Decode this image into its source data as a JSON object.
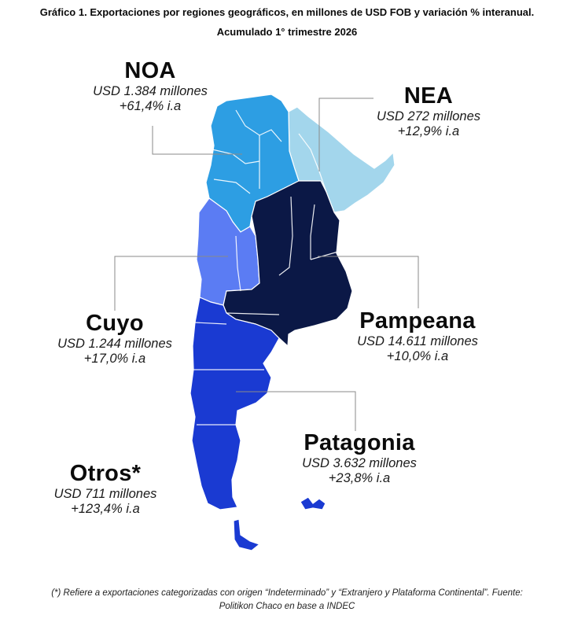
{
  "title": {
    "line1": "Gráfico 1. Exportaciones por regiones geográficos, en millones de USD FOB y variación % interanual.",
    "line2": "Acumulado 1° trimestre 2026"
  },
  "colors": {
    "noa": "#2d9ee3",
    "nea": "#a3d6ec",
    "cuyo": "#5b7cf3",
    "pampeana": "#0b1846",
    "patagonia": "#1a3ad2",
    "connector": "#8a8a8a"
  },
  "regions": {
    "noa": {
      "name": "NOA",
      "value": "USD 1.384 millones",
      "change": "+61,4% i.a"
    },
    "nea": {
      "name": "NEA",
      "value": "USD 272 millones",
      "change": "+12,9% i.a"
    },
    "cuyo": {
      "name": "Cuyo",
      "value": "USD 1.244 millones",
      "change": "+17,0% i.a"
    },
    "pampeana": {
      "name": "Pampeana",
      "value": "USD 14.611 millones",
      "change": "+10,0% i.a"
    },
    "patagonia": {
      "name": "Patagonia",
      "value": "USD 3.632 millones",
      "change": "+23,8% i.a"
    },
    "otros": {
      "name": "Otros*",
      "value": "USD 711 millones",
      "change": "+123,4% i.a"
    }
  },
  "footnote": {
    "line1": "(*) Refiere a exportaciones categorizadas con origen “Indeterminado” y “Extranjero y Plataforma Continental”. Fuente:",
    "line2": "Politikon Chaco en base a INDEC"
  }
}
